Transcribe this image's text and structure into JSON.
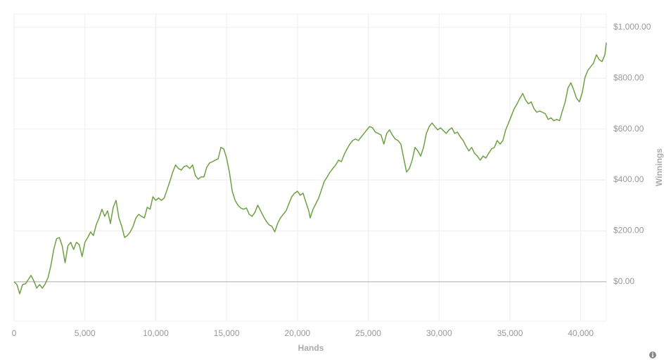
{
  "chart_data": {
    "type": "line",
    "x_label": "Hands",
    "y_label": "Winnings",
    "color": "#6fa043",
    "grid": true,
    "xlim": [
      0,
      41800
    ],
    "ylim": [
      -155,
      1052
    ],
    "xticks": [
      0,
      {
        "value": 5000,
        "label": "5,000"
      },
      {
        "value": 10000,
        "label": "10,000"
      },
      {
        "value": 15000,
        "label": "15,000"
      },
      {
        "value": 20000,
        "label": "20,000"
      },
      {
        "value": 25000,
        "label": "25,000"
      },
      {
        "value": 30000,
        "label": "30,000"
      },
      {
        "value": 35000,
        "label": "35,000"
      },
      {
        "value": 40000,
        "label": "40,000"
      }
    ],
    "yticks": [
      {
        "value": 0,
        "label": "$0.00"
      },
      {
        "value": 200,
        "label": "$200.00"
      },
      {
        "value": 400,
        "label": "$400.00"
      },
      {
        "value": 600,
        "label": "$600.00"
      },
      {
        "value": 800,
        "label": "$800.00"
      },
      {
        "value": 1000,
        "label": "$1,000.00"
      }
    ],
    "x": [
      0,
      200,
      400,
      600,
      800,
      1000,
      1200,
      1400,
      1600,
      1800,
      2000,
      2200,
      2400,
      2600,
      2800,
      3000,
      3200,
      3400,
      3600,
      3800,
      4000,
      4200,
      4400,
      4600,
      4800,
      5000,
      5200,
      5400,
      5600,
      5800,
      6000,
      6200,
      6400,
      6600,
      6800,
      7000,
      7200,
      7400,
      7600,
      7800,
      8000,
      8200,
      8400,
      8600,
      8800,
      9000,
      9200,
      9400,
      9600,
      9800,
      10000,
      10200,
      10400,
      10600,
      10800,
      11000,
      11200,
      11400,
      11600,
      11800,
      12000,
      12200,
      12400,
      12600,
      12800,
      13000,
      13200,
      13400,
      13600,
      13800,
      14000,
      14200,
      14400,
      14600,
      14800,
      15000,
      15200,
      15400,
      15600,
      15800,
      16000,
      16200,
      16400,
      16600,
      16800,
      17000,
      17200,
      17400,
      17600,
      17800,
      18000,
      18200,
      18400,
      18600,
      18800,
      19000,
      19200,
      19400,
      19600,
      19800,
      20000,
      20200,
      20400,
      20600,
      20800,
      20900,
      21100,
      21300,
      21500,
      21700,
      21900,
      22100,
      22300,
      22500,
      22700,
      22900,
      23100,
      23300,
      23500,
      23700,
      23900,
      24100,
      24300,
      24500,
      24700,
      24900,
      25100,
      25300,
      25500,
      25700,
      25900,
      26100,
      26300,
      26500,
      26700,
      26900,
      27100,
      27300,
      27500,
      27700,
      27900,
      28100,
      28300,
      28500,
      28700,
      28900,
      29100,
      29300,
      29500,
      29700,
      29900,
      30100,
      30300,
      30500,
      30700,
      30900,
      31100,
      31300,
      31500,
      31700,
      31900,
      32100,
      32300,
      32500,
      32700,
      32900,
      33100,
      33300,
      33500,
      33700,
      33900,
      34100,
      34300,
      34500,
      34700,
      34900,
      35100,
      35300,
      35500,
      35700,
      35900,
      36100,
      36300,
      36500,
      36700,
      36900,
      37100,
      37300,
      37500,
      37700,
      37900,
      38100,
      38300,
      38500,
      38700,
      38900,
      39100,
      39300,
      39500,
      39700,
      39900,
      40100,
      40300,
      40500,
      40700,
      40900,
      41100,
      41300,
      41500,
      41700,
      41800
    ],
    "values": [
      0,
      -11,
      -47,
      -11,
      -8,
      8,
      25,
      3,
      -25,
      -11,
      -25,
      -8,
      17,
      64,
      127,
      169,
      174,
      141,
      75,
      141,
      155,
      127,
      155,
      146,
      99,
      155,
      174,
      196,
      182,
      224,
      251,
      285,
      257,
      279,
      229,
      293,
      320,
      251,
      218,
      174,
      182,
      196,
      218,
      251,
      265,
      257,
      251,
      293,
      285,
      334,
      320,
      329,
      320,
      329,
      362,
      395,
      431,
      459,
      445,
      439,
      453,
      456,
      445,
      459,
      417,
      403,
      412,
      412,
      450,
      467,
      472,
      478,
      483,
      528,
      522,
      486,
      431,
      356,
      320,
      301,
      290,
      285,
      290,
      265,
      257,
      273,
      301,
      279,
      257,
      238,
      224,
      218,
      196,
      229,
      251,
      265,
      279,
      307,
      334,
      348,
      356,
      340,
      348,
      312,
      279,
      251,
      285,
      307,
      329,
      362,
      395,
      412,
      431,
      445,
      459,
      478,
      472,
      500,
      522,
      541,
      555,
      561,
      555,
      569,
      583,
      597,
      610,
      605,
      588,
      583,
      577,
      541,
      583,
      597,
      577,
      561,
      555,
      541,
      486,
      431,
      445,
      478,
      528,
      514,
      494,
      528,
      583,
      610,
      624,
      610,
      597,
      605,
      594,
      583,
      597,
      605,
      583,
      588,
      569,
      555,
      533,
      514,
      528,
      505,
      494,
      478,
      494,
      486,
      505,
      522,
      528,
      555,
      541,
      555,
      597,
      624,
      652,
      680,
      699,
      721,
      740,
      715,
      699,
      707,
      680,
      666,
      671,
      666,
      660,
      638,
      644,
      633,
      638,
      633,
      671,
      707,
      762,
      782,
      754,
      721,
      707,
      743,
      804,
      831,
      845,
      859,
      892,
      873,
      865,
      892,
      940
    ]
  }
}
